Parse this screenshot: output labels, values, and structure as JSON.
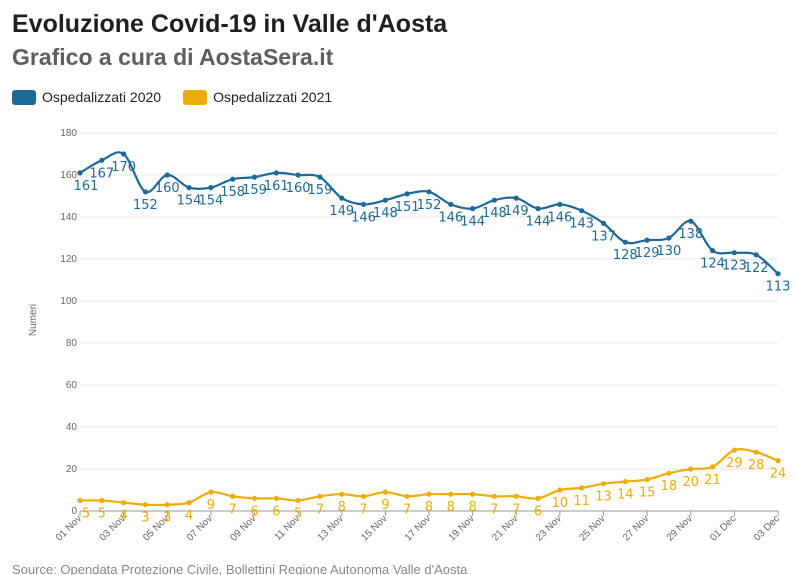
{
  "chart_data": {
    "type": "line",
    "title": "Evoluzione Covid-19 in Valle d'Aosta",
    "subtitle": "Grafico a cura di AostaSera.it",
    "ylabel": "Numeri",
    "ylim": [
      0,
      180
    ],
    "yticks": [
      0,
      20,
      40,
      60,
      80,
      100,
      120,
      140,
      160,
      180
    ],
    "x": [
      "01 Nov",
      "02 Nov",
      "03 Nov",
      "04 Nov",
      "05 Nov",
      "06 Nov",
      "07 Nov",
      "08 Nov",
      "09 Nov",
      "10 Nov",
      "11 Nov",
      "12 Nov",
      "13 Nov",
      "14 Nov",
      "15 Nov",
      "16 Nov",
      "17 Nov",
      "18 Nov",
      "19 Nov",
      "20 Nov",
      "21 Nov",
      "22 Nov",
      "23 Nov",
      "24 Nov",
      "25 Nov",
      "26 Nov",
      "27 Nov",
      "28 Nov",
      "29 Nov",
      "30 Nov",
      "01 Dec",
      "02 Dec",
      "03 Dec"
    ],
    "xtick_labels": [
      "01 Nov",
      "03 Nov",
      "05 Nov",
      "07 Nov",
      "09 Nov",
      "11 Nov",
      "13 Nov",
      "15 Nov",
      "17 Nov",
      "19 Nov",
      "21 Nov",
      "23 Nov",
      "25 Nov",
      "27 Nov",
      "29 Nov",
      "01 Dec",
      "03 Dec"
    ],
    "series": [
      {
        "name": "Ospedalizzati 2020",
        "color": "#1d6996",
        "values": [
          161,
          167,
          170,
          152,
          160,
          154,
          154,
          158,
          159,
          161,
          160,
          159,
          149,
          146,
          148,
          151,
          152,
          146,
          144,
          148,
          149,
          144,
          146,
          143,
          137,
          128,
          129,
          130,
          138,
          124,
          123,
          122,
          113
        ]
      },
      {
        "name": "Ospedalizzati 2021",
        "color": "#edad08",
        "values": [
          5,
          5,
          4,
          3,
          3,
          4,
          9,
          7,
          6,
          6,
          5,
          7,
          8,
          7,
          9,
          7,
          8,
          8,
          8,
          7,
          7,
          6,
          10,
          11,
          13,
          14,
          15,
          18,
          20,
          21,
          29,
          28,
          24
        ]
      }
    ]
  },
  "source_text": "Source: Opendata Protezione Civile, Bollettini Regione Autonoma Valle d'Aosta"
}
